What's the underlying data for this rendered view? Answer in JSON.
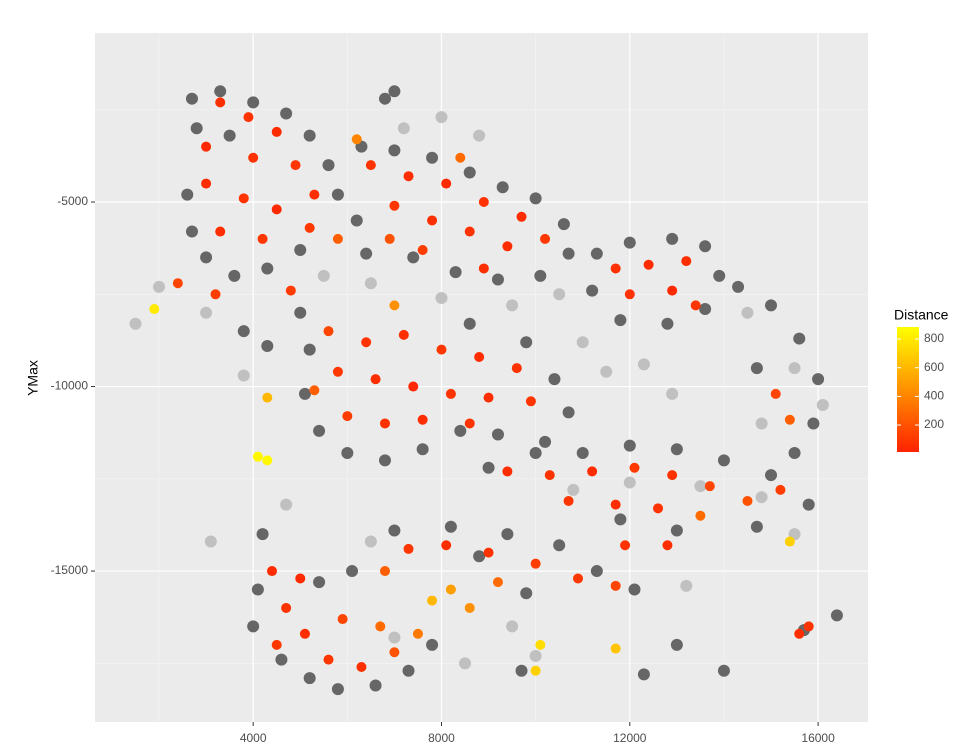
{
  "chart_data": {
    "type": "scatter",
    "ylabel": "YMax",
    "xlim": [
      640,
      17060
    ],
    "ylim": [
      -19090,
      -420
    ],
    "xticks": [
      4000,
      8000,
      12000,
      16000
    ],
    "yticks": [
      -5000,
      -10000,
      -15000
    ],
    "grid": true,
    "background_layers": [
      {
        "color": "#c0c0c0",
        "x": [
          2000,
          1500,
          3000,
          3800,
          5500,
          6500,
          8000,
          9500,
          10500,
          11000,
          11500,
          12300,
          12900,
          7200,
          8000,
          8800,
          10800,
          12000,
          13500,
          14800,
          15500,
          13200,
          9500,
          8500,
          10000,
          7000,
          6500,
          14500,
          15500,
          16100,
          14800,
          3100,
          4700
        ],
        "y": [
          -7300,
          -8300,
          -8000,
          -9700,
          -7000,
          -7200,
          -7600,
          -7800,
          -7500,
          -8800,
          -9600,
          -9400,
          -10200,
          -3000,
          -2700,
          -3200,
          -12800,
          -12600,
          -12700,
          -13000,
          -14000,
          -15400,
          -16500,
          -17500,
          -17300,
          -16800,
          -14200,
          -8000,
          -9500,
          -10500,
          -11000,
          -14200,
          -13200
        ]
      },
      {
        "color": "#666666",
        "x": [
          2700,
          3300,
          4000,
          4700,
          5200,
          5600,
          5800,
          6200,
          6400,
          2600,
          2700,
          3000,
          3600,
          4300,
          5000,
          3500,
          2800,
          6300,
          7000,
          7800,
          8600,
          9300,
          10000,
          10600,
          10700,
          10100,
          9200,
          8300,
          7400,
          6800,
          7000,
          11300,
          12000,
          12900,
          13600,
          13900,
          13600,
          12800,
          11800,
          11200,
          5000,
          5200,
          5100,
          5400,
          6000,
          6800,
          7600,
          8400,
          9200,
          10200,
          10700,
          10400,
          9800,
          8600,
          4300,
          3800,
          9000,
          10000,
          11000,
          12000,
          13000,
          14000,
          15000,
          15800,
          14700,
          13000,
          11800,
          4200,
          4100,
          4000,
          4600,
          5200,
          5800,
          6600,
          7300,
          7800,
          5400,
          6100,
          7000,
          8200,
          9400,
          10500,
          11300,
          12100,
          9800,
          8800,
          14300,
          15000,
          15600,
          16000,
          15900,
          15500,
          14700,
          16400,
          15700,
          13000,
          12300,
          14000,
          9700
        ],
        "y": [
          -2200,
          -2000,
          -2300,
          -2600,
          -3200,
          -4000,
          -4800,
          -5500,
          -6400,
          -4800,
          -5800,
          -6500,
          -7000,
          -6800,
          -6300,
          -3200,
          -3000,
          -3500,
          -3600,
          -3800,
          -4200,
          -4600,
          -4900,
          -5600,
          -6400,
          -7000,
          -7100,
          -6900,
          -6500,
          -2200,
          -2000,
          -6400,
          -6100,
          -6000,
          -6200,
          -7000,
          -7900,
          -8300,
          -8200,
          -7400,
          -8000,
          -9000,
          -10200,
          -11200,
          -11800,
          -12000,
          -11700,
          -11200,
          -11300,
          -11500,
          -10700,
          -9800,
          -8800,
          -8300,
          -8900,
          -8500,
          -12200,
          -11800,
          -11800,
          -11600,
          -11700,
          -12000,
          -12400,
          -13200,
          -13800,
          -13900,
          -13600,
          -14000,
          -15500,
          -16500,
          -17400,
          -17900,
          -18200,
          -18100,
          -17700,
          -17000,
          -15300,
          -15000,
          -13900,
          -13800,
          -14000,
          -14300,
          -15000,
          -15500,
          -15600,
          -14600,
          -7300,
          -7800,
          -8700,
          -9800,
          -11000,
          -11800,
          -9500,
          -16200,
          -16600,
          -17000,
          -17800,
          -17700,
          -17700
        ]
      }
    ],
    "points": {
      "x": [
        3300,
        3900,
        4500,
        3000,
        4000,
        4900,
        5300,
        3000,
        3800,
        4500,
        5200,
        3300,
        4200,
        2400,
        3200,
        4800,
        5800,
        6500,
        7300,
        8100,
        8900,
        9700,
        7000,
        7800,
        8600,
        9400,
        10200,
        6900,
        7600,
        8400,
        6200,
        8900,
        11700,
        12400,
        13200,
        12000,
        12900,
        13400,
        5600,
        6400,
        7200,
        8000,
        8800,
        9600,
        5800,
        6600,
        7400,
        8200,
        9000,
        9900,
        6000,
        6800,
        7600,
        8600,
        5300,
        7000,
        4300,
        9400,
        10300,
        11200,
        12100,
        12900,
        13700,
        14500,
        15200,
        10700,
        11700,
        12600,
        13500,
        15400,
        15100,
        4400,
        4700,
        5100,
        5600,
        6300,
        7000,
        4500,
        5900,
        5000,
        6700,
        7500,
        7300,
        8100,
        9000,
        10000,
        10900,
        11700,
        8200,
        7800,
        8600,
        9200,
        6800,
        11900,
        12800,
        1900,
        4100,
        4300,
        10000,
        10100,
        11700,
        15400,
        15600,
        15800
      ],
      "y": [
        -2300,
        -2700,
        -3100,
        -3500,
        -3800,
        -4000,
        -4800,
        -4500,
        -4900,
        -5200,
        -5700,
        -5800,
        -6000,
        -7200,
        -7500,
        -7400,
        -6000,
        -4000,
        -4300,
        -4500,
        -5000,
        -5400,
        -5100,
        -5500,
        -5800,
        -6200,
        -6000,
        -6000,
        -6300,
        -3800,
        -3300,
        -6800,
        -6800,
        -6700,
        -6600,
        -7500,
        -7400,
        -7800,
        -8500,
        -8800,
        -8600,
        -9000,
        -9200,
        -9500,
        -9600,
        -9800,
        -10000,
        -10200,
        -10300,
        -10400,
        -10800,
        -11000,
        -10900,
        -11000,
        -10100,
        -7800,
        -10300,
        -12300,
        -12400,
        -12300,
        -12200,
        -12400,
        -12700,
        -13100,
        -12800,
        -13100,
        -13200,
        -13300,
        -13500,
        -10900,
        -10200,
        -15000,
        -16000,
        -16700,
        -17400,
        -17600,
        -17200,
        -17000,
        -16300,
        -15200,
        -16500,
        -16700,
        -14400,
        -14300,
        -14500,
        -14800,
        -15200,
        -15400,
        -15500,
        -15800,
        -16000,
        -15300,
        -15000,
        -14300,
        -14300,
        -7900,
        -11900,
        -12000,
        -17700,
        -17000,
        -17100,
        -14200,
        -16700,
        -16500
      ],
      "distance": [
        60,
        80,
        50,
        40,
        70,
        90,
        60,
        50,
        80,
        40,
        100,
        60,
        90,
        150,
        120,
        110,
        250,
        80,
        60,
        40,
        70,
        50,
        90,
        60,
        80,
        50,
        100,
        200,
        120,
        300,
        400,
        60,
        70,
        50,
        60,
        80,
        40,
        90,
        150,
        80,
        60,
        90,
        50,
        70,
        100,
        60,
        40,
        80,
        60,
        90,
        120,
        70,
        50,
        80,
        250,
        450,
        600,
        60,
        80,
        50,
        100,
        70,
        150,
        200,
        120,
        90,
        60,
        80,
        300,
        250,
        150,
        50,
        80,
        60,
        90,
        70,
        200,
        100,
        150,
        40,
        300,
        350,
        90,
        60,
        80,
        120,
        100,
        150,
        500,
        600,
        450,
        300,
        250,
        80,
        60,
        800,
        850,
        860,
        700,
        750,
        650,
        700,
        60,
        80
      ]
    },
    "legend": {
      "title": "Distance",
      "color_low": "#ff2200",
      "color_high": "#ffff00",
      "limits": [
        12,
        884
      ],
      "ticks": [
        200,
        400,
        600,
        800
      ]
    }
  }
}
